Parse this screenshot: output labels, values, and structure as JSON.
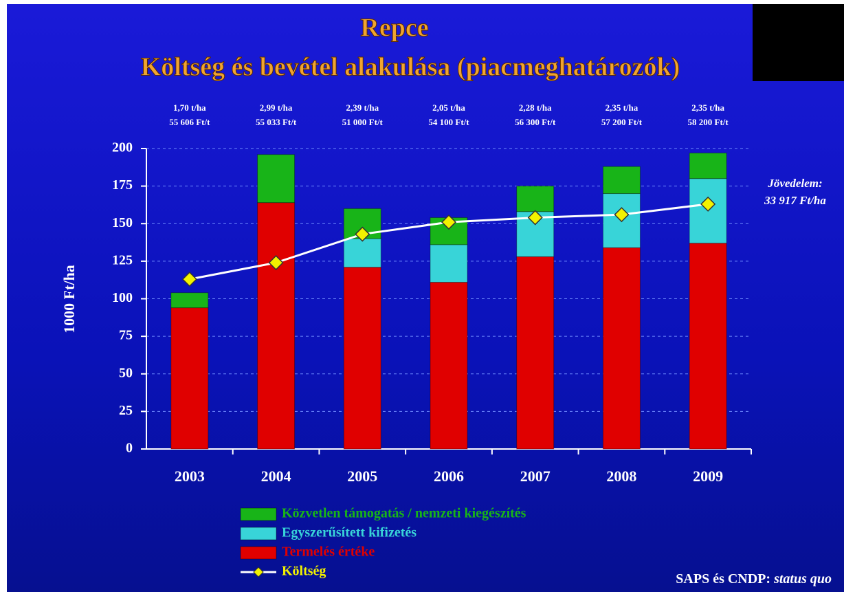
{
  "chart_data": {
    "type": "bar",
    "stacked": true,
    "title": "Repce",
    "subtitle": "Költség és bevétel alakulása (piacmeghatározók)",
    "y_label": "1000 Ft/ha",
    "categories": [
      "2003",
      "2004",
      "2005",
      "2006",
      "2007",
      "2008",
      "2009"
    ],
    "annotations": [
      [
        "1,70 t/ha",
        "55 606 Ft/t"
      ],
      [
        "2,99 t/ha",
        "55 033 Ft/t"
      ],
      [
        "2,39 t/ha",
        "51 000 Ft/t"
      ],
      [
        "2,05 t/ha",
        "54 100 Ft/t"
      ],
      [
        "2,28 t/ha",
        "56 300 Ft/t"
      ],
      [
        "2,35 t/ha",
        "57 200 Ft/t"
      ],
      [
        "2,35 t/ha",
        "58 200 Ft/t"
      ]
    ],
    "side_note": [
      "Jövedelem:",
      "33 917 Ft/ha"
    ],
    "source": [
      "SAPS és CNDP:",
      "status quo"
    ],
    "series": [
      {
        "name": "Közvetlen támogatás / nemzeti kiegészítés",
        "color": "#18b418",
        "values": [
          10,
          32,
          20,
          18,
          17,
          18,
          17
        ]
      },
      {
        "name": "Egyszerűsített kifizetés",
        "color": "#38d4d8",
        "values": [
          0,
          0,
          19,
          25,
          30,
          36,
          43
        ]
      },
      {
        "name": "Termelés értéke",
        "color": "#e00000",
        "values": [
          94,
          164,
          121,
          111,
          128,
          134,
          137
        ]
      },
      {
        "name": "Költség",
        "type": "line",
        "color": "#ffffff",
        "marker_color": "#f2f200",
        "values": [
          113,
          124,
          143,
          151,
          154,
          156,
          163
        ]
      }
    ],
    "ylim": [
      0,
      200
    ],
    "yticks": [
      0,
      25,
      50,
      75,
      100,
      125,
      150,
      175,
      200
    ],
    "grid": true
  }
}
